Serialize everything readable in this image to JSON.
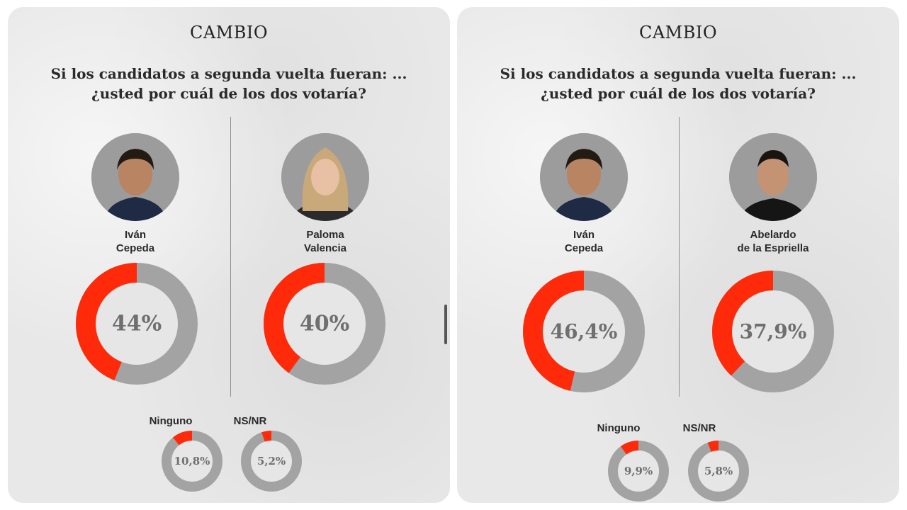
{
  "colors": {
    "accent": "#ff2a0a",
    "track": "#a3a3a3",
    "inner": "#e6e6e6",
    "text_value": "#6f6f6f"
  },
  "panels": [
    {
      "brand": "CAMBIO",
      "question_line1": "Si los candidatos a segunda vuelta fueran: ...",
      "question_line2": "¿usted por cuál de los dos votaría?",
      "candidates": [
        {
          "name_line1": "Iván",
          "name_line2": "Cepeda",
          "avatar_icon": "person-photo-icon"
        },
        {
          "name_line1": "Paloma",
          "name_line2": "Valencia",
          "avatar_icon": "person-photo-icon"
        }
      ],
      "others": [
        {
          "label": "Ninguno"
        },
        {
          "label": "NS/NR"
        }
      ]
    },
    {
      "brand": "CAMBIO",
      "question_line1": "Si los candidatos a segunda vuelta fueran: ...",
      "question_line2": "¿usted por cuál de los dos votaría?",
      "candidates": [
        {
          "name_line1": "Iván",
          "name_line2": "Cepeda",
          "avatar_icon": "person-photo-icon"
        },
        {
          "name_line1": "Abelardo",
          "name_line2": "de la Espriella",
          "avatar_icon": "person-photo-icon"
        }
      ],
      "others": [
        {
          "label": "Ninguno"
        },
        {
          "label": "NS/NR"
        }
      ]
    }
  ],
  "chart_data": [
    {
      "type": "pie",
      "title": "Si los candidatos a segunda vuelta fueran: ... ¿usted por cuál de los dos votaría?",
      "categories": [
        "Iván Cepeda",
        "Paloma Valencia",
        "Ninguno",
        "NS/NR"
      ],
      "values": [
        44,
        40,
        10.8,
        5.2
      ],
      "value_labels": [
        "44%",
        "40%",
        "10,8%",
        "5,2%"
      ],
      "unit": "%"
    },
    {
      "type": "pie",
      "title": "Si los candidatos a segunda vuelta fueran: ... ¿usted por cuál de los dos votaría?",
      "categories": [
        "Iván Cepeda",
        "Abelardo de la Espriella",
        "Ninguno",
        "NS/NR"
      ],
      "values": [
        46.4,
        37.9,
        9.9,
        5.8
      ],
      "value_labels": [
        "46,4%",
        "37,9%",
        "9,9%",
        "5,8%"
      ],
      "unit": "%"
    }
  ]
}
